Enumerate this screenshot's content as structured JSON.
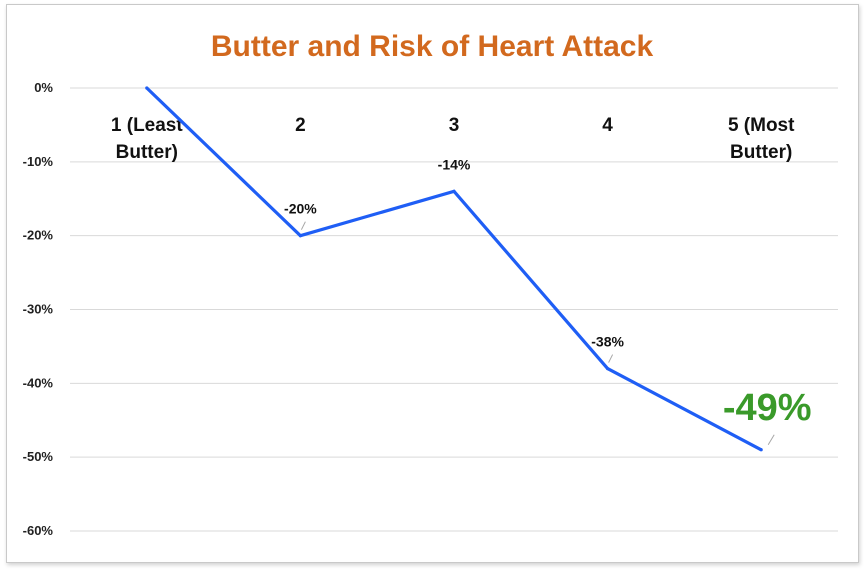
{
  "chart_data": {
    "type": "line",
    "title": "Butter and Risk of Heart Attack",
    "xlabel": "",
    "ylabel": "",
    "categories": [
      "1 (Least Butter)",
      "2",
      "3",
      "4",
      "5 (Most Butter)"
    ],
    "category_lines": [
      [
        "1 (Least",
        "Butter)"
      ],
      [
        "2"
      ],
      [
        "3"
      ],
      [
        "4"
      ],
      [
        "5 (Most",
        "Butter)"
      ]
    ],
    "series": [
      {
        "values": [
          0,
          -20,
          -14,
          -38,
          -49
        ]
      }
    ],
    "data_labels": [
      "",
      "-20%",
      "-14%",
      "-38%",
      "-49%"
    ],
    "highlight_index": 4,
    "yticks": [
      0,
      -10,
      -20,
      -30,
      -40,
      -50,
      -60
    ],
    "ytick_labels": [
      "0%",
      "-10%",
      "-20%",
      "-30%",
      "-40%",
      "-50%",
      "-60%"
    ],
    "ylim": [
      -60,
      0
    ],
    "grid": true,
    "legend": "none",
    "colors": {
      "title": "#d2691e",
      "line": "#1f5ef5",
      "highlight": "#3a9a2a",
      "grid": "#d9d9d9",
      "leader": "#a6a6a6"
    }
  }
}
